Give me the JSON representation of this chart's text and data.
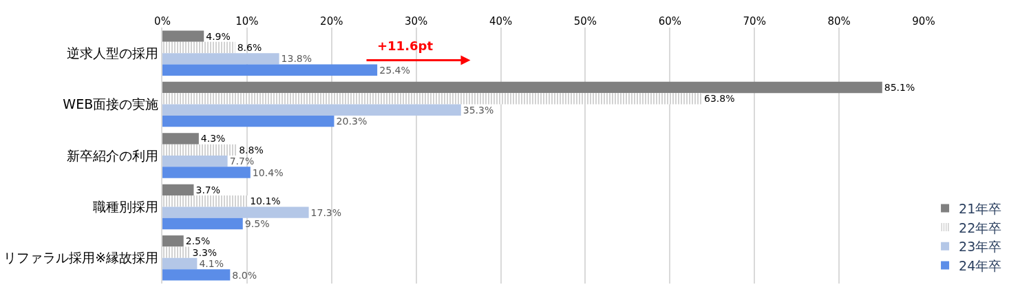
{
  "chart_data": {
    "type": "bar",
    "orientation": "horizontal",
    "categories": [
      "逆求人型の採用",
      "WEB面接の実施",
      "新卒紹介の利用",
      "職種別採用",
      "リファラル採用※縁故採用"
    ],
    "series": [
      {
        "name": "21年卒",
        "color": "#808080",
        "values": [
          4.9,
          85.1,
          4.3,
          3.7,
          2.5
        ],
        "value_labels": [
          "4.9%",
          "85.1%",
          "4.3%",
          "3.7%",
          "2.5%"
        ]
      },
      {
        "name": "22年卒",
        "color": "#a6a6a6",
        "values": [
          8.6,
          63.8,
          8.8,
          10.1,
          3.3
        ],
        "value_labels": [
          "8.6%",
          "63.8%",
          "8.8%",
          "10.1%",
          "3.3%"
        ]
      },
      {
        "name": "23年卒",
        "color": "#b4c7e7",
        "values": [
          13.8,
          35.3,
          7.7,
          17.3,
          4.1
        ],
        "value_labels": [
          "13.8%",
          "35.3%",
          "7.7%",
          "17.3%",
          "4.1%"
        ]
      },
      {
        "name": "24年卒",
        "color": "#5b8de8",
        "values": [
          25.4,
          20.3,
          10.4,
          9.5,
          8.0
        ],
        "value_labels": [
          "25.4%",
          "20.3%",
          "10.4%",
          "9.5%",
          "8.0%"
        ]
      }
    ],
    "xlim": [
      0,
      90
    ],
    "xticks": [
      {
        "value": 0,
        "label": "0%"
      },
      {
        "value": 10,
        "label": "10%"
      },
      {
        "value": 20,
        "label": "20%"
      },
      {
        "value": 30,
        "label": "30%"
      },
      {
        "value": 40,
        "label": "40%"
      },
      {
        "value": 50,
        "label": "50%"
      },
      {
        "value": 60,
        "label": "60%"
      },
      {
        "value": 70,
        "label": "70%"
      },
      {
        "value": 80,
        "label": "80%"
      },
      {
        "value": 90,
        "label": "90%"
      }
    ],
    "grid": "x",
    "legend": "bottom right",
    "annotations": [
      "+11.6pt"
    ]
  }
}
